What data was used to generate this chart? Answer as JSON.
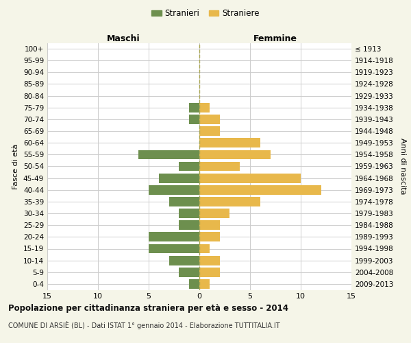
{
  "age_groups": [
    "100+",
    "95-99",
    "90-94",
    "85-89",
    "80-84",
    "75-79",
    "70-74",
    "65-69",
    "60-64",
    "55-59",
    "50-54",
    "45-49",
    "40-44",
    "35-39",
    "30-34",
    "25-29",
    "20-24",
    "15-19",
    "10-14",
    "5-9",
    "0-4"
  ],
  "birth_years": [
    "≤ 1913",
    "1914-1918",
    "1919-1923",
    "1924-1928",
    "1929-1933",
    "1934-1938",
    "1939-1943",
    "1944-1948",
    "1949-1953",
    "1954-1958",
    "1959-1963",
    "1964-1968",
    "1969-1973",
    "1974-1978",
    "1979-1983",
    "1984-1988",
    "1989-1993",
    "1994-1998",
    "1999-2003",
    "2004-2008",
    "2009-2013"
  ],
  "maschi": [
    0,
    0,
    0,
    0,
    0,
    1,
    1,
    0,
    0,
    6,
    2,
    4,
    5,
    3,
    2,
    2,
    5,
    5,
    3,
    2,
    1
  ],
  "femmine": [
    0,
    0,
    0,
    0,
    0,
    1,
    2,
    2,
    6,
    7,
    4,
    10,
    12,
    6,
    3,
    2,
    2,
    1,
    2,
    2,
    1
  ],
  "maschi_color": "#6d8f4e",
  "femmine_color": "#e8b84b",
  "grid_color": "#cccccc",
  "dashed_line_color": "#aaa855",
  "title": "Popolazione per cittadinanza straniera per età e sesso - 2014",
  "subtitle": "COMUNE DI ARSIÈ (BL) - Dati ISTAT 1° gennaio 2014 - Elaborazione TUTTITALIA.IT",
  "xlabel_left": "Maschi",
  "xlabel_right": "Femmine",
  "ylabel_left": "Fasce di età",
  "ylabel_right": "Anni di nascita",
  "legend_stranieri": "Stranieri",
  "legend_straniere": "Straniere",
  "xlim": 15,
  "bg_color": "#f5f5e8",
  "plot_bg_color": "#ffffff"
}
